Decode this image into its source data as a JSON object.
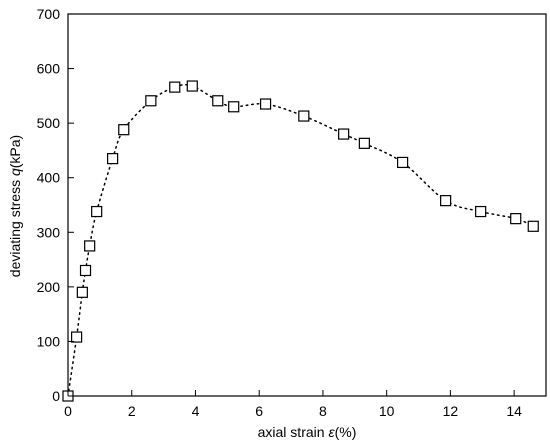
{
  "chart_data": {
    "type": "scatter",
    "title": "",
    "xlabel_main": "axial strain ",
    "xlabel_symbol": "ε",
    "xlabel_unit": "(%)",
    "ylabel_main": "deviating stress ",
    "ylabel_symbol": "q",
    "ylabel_unit": "(kPa)",
    "xlim": [
      0,
      15
    ],
    "ylim": [
      0,
      700
    ],
    "x_ticks": [
      0,
      2,
      4,
      6,
      8,
      10,
      12,
      14
    ],
    "y_ticks": [
      0,
      100,
      200,
      300,
      400,
      500,
      600,
      700
    ],
    "grid": false,
    "marker": "open-square",
    "line_style": "dotted",
    "series": [
      {
        "x": [
          0.0,
          0.27,
          0.45,
          0.55,
          0.68,
          0.9,
          1.4,
          1.75,
          2.6,
          3.35,
          3.9,
          4.7,
          5.2,
          6.2,
          7.4,
          8.65,
          9.3,
          10.5,
          11.85,
          12.95,
          14.05,
          14.6
        ],
        "y": [
          0,
          108,
          190,
          230,
          275,
          338,
          435,
          488,
          541,
          566,
          568,
          541,
          530,
          535,
          513,
          480,
          463,
          428,
          358,
          338,
          325,
          311
        ]
      }
    ]
  }
}
